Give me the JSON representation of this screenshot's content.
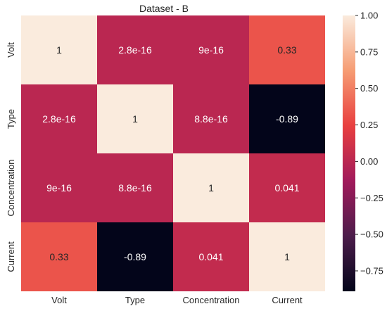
{
  "chart_data": {
    "type": "heatmap",
    "title": "Dataset - B",
    "rows": [
      "Volt",
      "Type",
      "Concentration",
      "Current"
    ],
    "columns": [
      "Volt",
      "Type",
      "Concentration",
      "Current"
    ],
    "values": [
      [
        1,
        2.8e-16,
        9e-16,
        0.33
      ],
      [
        2.8e-16,
        1,
        8.8e-16,
        -0.89
      ],
      [
        9e-16,
        8.8e-16,
        1,
        0.041
      ],
      [
        0.33,
        -0.89,
        0.041,
        1
      ]
    ],
    "cell_labels": [
      [
        "1",
        "2.8e-16",
        "9e-16",
        "0.33"
      ],
      [
        "2.8e-16",
        "1",
        "8.8e-16",
        "-0.89"
      ],
      [
        "9e-16",
        "8.8e-16",
        "1",
        "0.041"
      ],
      [
        "0.33",
        "-0.89",
        "0.041",
        "1"
      ]
    ],
    "colorbar": {
      "range": [
        -0.89,
        1.0
      ],
      "ticks": [
        1.0,
        0.75,
        0.5,
        0.25,
        0.0,
        -0.25,
        -0.5,
        -0.75
      ],
      "tick_labels": [
        "1.00",
        "0.75",
        "0.50",
        "0.25",
        "0.00",
        "−0.25",
        "−0.50",
        "−0.75"
      ],
      "colormap": "rocket",
      "placement": "right"
    },
    "grid": false
  },
  "colors": {
    "rocket_stops": [
      "#03051a",
      "#4c1d4b",
      "#a11a5b",
      "#e83f3f",
      "#f69c73",
      "#faebdd"
    ],
    "text_light": "#ffffff",
    "text_dark": "#262626"
  }
}
